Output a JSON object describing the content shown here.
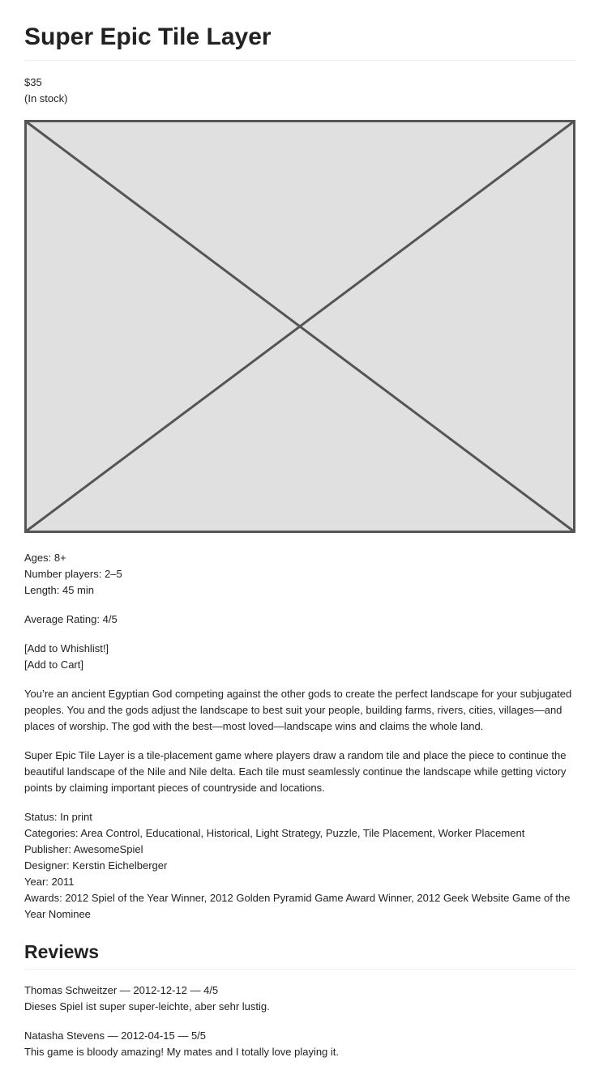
{
  "header": {
    "title": "Super Epic Tile Layer"
  },
  "purchase": {
    "price": "$35",
    "stock": "(In stock)"
  },
  "details": [
    "Ages: 8+",
    "Number players: 2–5",
    "Length: 45 min"
  ],
  "rating": "Average Rating: 4/5",
  "actions": [
    "[Add to Whishlist!]",
    "[Add to Cart]"
  ],
  "description": [
    "You’re an ancient Egyptian God competing against the other gods to create the perfect landscape for your subjugated peoples. You and the gods adjust the landscape to best suit your people, building farms, rivers, cities, villages—and places of worship. The god with the best—most loved—landscape wins and claims the whole land.",
    "Super Epic Tile Layer is a tile-placement game where players draw a random tile and place the piece to continue the beautiful landscape of the Nile and Nile delta. Each tile must seamlessly continue the landscape while getting victory points by claiming important pieces of countryside and locations."
  ],
  "metadata": [
    "Status: In print",
    "Categories: Area Control, Educational, Historical, Light Strategy, Puzzle, Tile Placement, Worker Placement",
    "Publisher: AwesomeSpiel",
    "Designer: Kerstin Eichelberger",
    "Year: 2011",
    "Awards: 2012 Spiel of the Year Winner, 2012 Golden Pyramid Game Award Winner, 2012 Geek Website Game of the Year Nominee"
  ],
  "reviews": {
    "title": "Reviews",
    "items": [
      {
        "byline": "Thomas Schweitzer — 2012-12-12 — 4/5",
        "text": "Dieses Spiel ist super super-leichte, aber sehr lustig."
      },
      {
        "byline": "Natasha Stevens — 2012-04-15 — 5/5",
        "text": "This game is bloody amazing! My mates and I totally love playing it."
      }
    ]
  }
}
